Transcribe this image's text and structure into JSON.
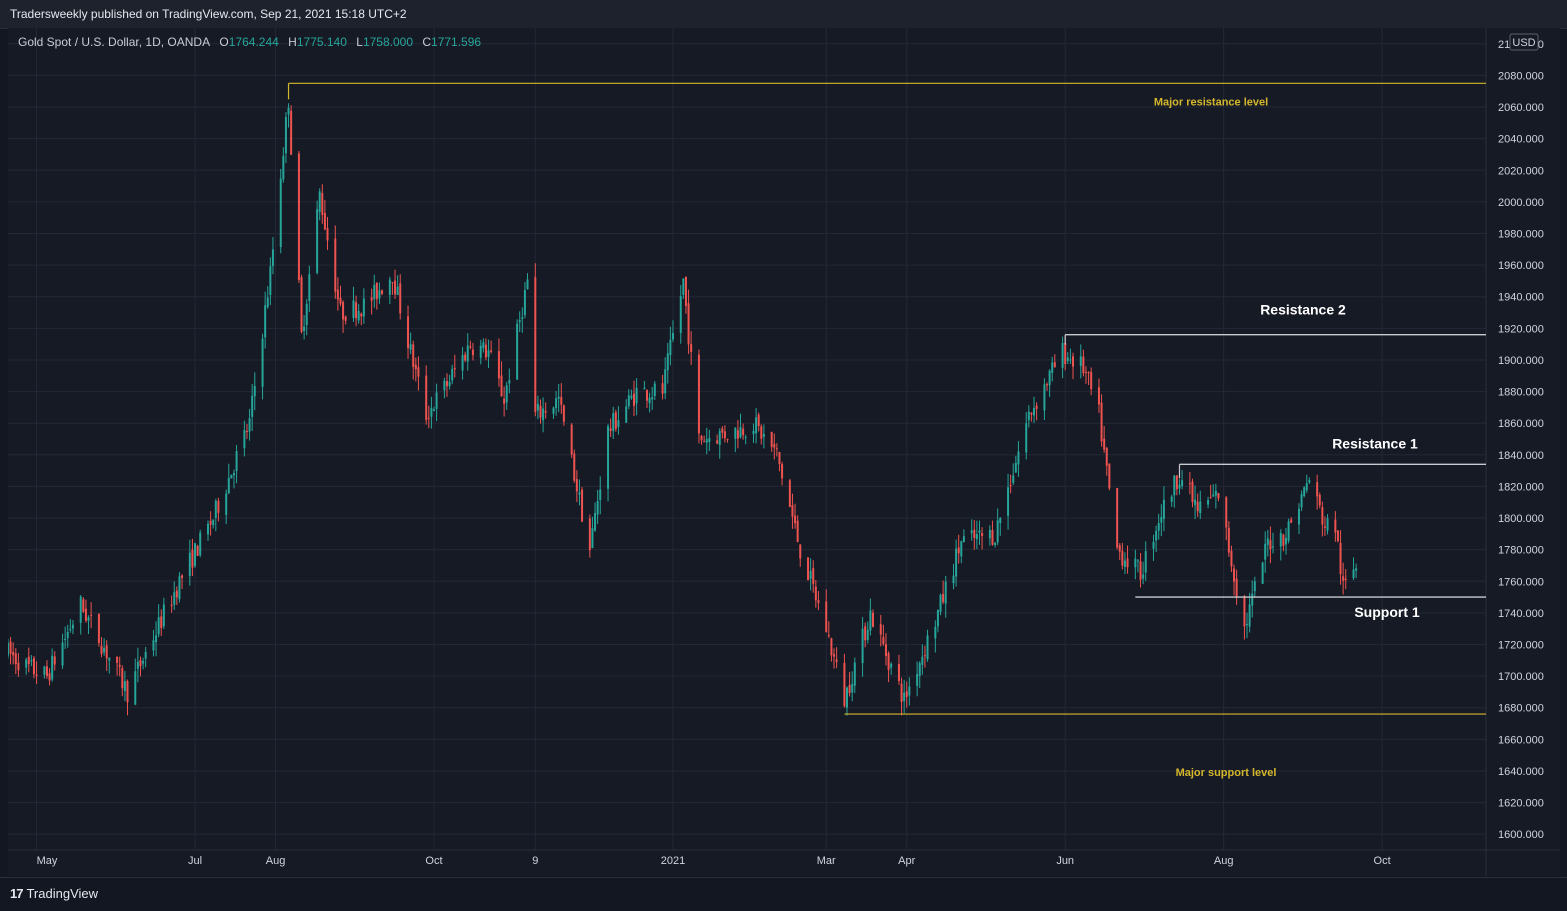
{
  "header": {
    "published": "Tradersweekly published on TradingView.com, Sep 21, 2021 15:18 UTC+2"
  },
  "legend": {
    "symbol": "Gold Spot / U.S. Dollar, 1D, OANDA",
    "open_label": "O",
    "open": "1764.244",
    "high_label": "H",
    "high": "1775.140",
    "low_label": "L",
    "low": "1758.000",
    "close_label": "C",
    "close": "1771.596"
  },
  "footer": {
    "brand": "TradingView",
    "brand_mark": "17"
  },
  "colors": {
    "background": "#161a25",
    "grid": "#242836",
    "up": "#26a69a",
    "down": "#ef5350",
    "major_level": "#d4b72c",
    "minor_level": "#c8cad0",
    "axis_text": "#d1d4dc"
  },
  "chart_data": {
    "type": "candlestick",
    "currency": "USD",
    "ylim": [
      1590,
      2110
    ],
    "y_ticks": [
      1600,
      1620,
      1640,
      1660,
      1680,
      1700,
      1720,
      1740,
      1760,
      1780,
      1800,
      1820,
      1840,
      1860,
      1880,
      1900,
      1920,
      1940,
      1960,
      1980,
      2000,
      2020,
      2040,
      2060,
      2080,
      2100
    ],
    "y_tick_labels": [
      "1600.000",
      "1620.000",
      "1640.000",
      "1660.000",
      "1680.000",
      "1700.000",
      "1720.000",
      "1740.000",
      "1760.000",
      "1780.000",
      "1800.000",
      "1820.000",
      "1840.000",
      "1860.000",
      "1880.000",
      "1900.000",
      "1920.000",
      "1940.000",
      "1960.000",
      "1980.000",
      "2000.000",
      "2020.000",
      "2040.000",
      "2060.000",
      "2080.000",
      "2100.000"
    ],
    "x_range": [
      "2020-04-20",
      "2021-11-10"
    ],
    "x_ticks": [
      {
        "label": "May",
        "date": "2020-05-01"
      },
      {
        "label": "Jul",
        "date": "2020-07-01"
      },
      {
        "label": "Aug",
        "date": "2020-08-01"
      },
      {
        "label": "Oct",
        "date": "2020-10-01"
      },
      {
        "label": "9",
        "date": "2020-11-09"
      },
      {
        "label": "2021",
        "date": "2021-01-01"
      },
      {
        "label": "Mar",
        "date": "2021-03-01"
      },
      {
        "label": "Apr",
        "date": "2021-04-01"
      },
      {
        "label": "Jun",
        "date": "2021-06-01"
      },
      {
        "label": "Aug",
        "date": "2021-08-01"
      },
      {
        "label": "Oct",
        "date": "2021-10-01"
      }
    ],
    "price_path": [
      [
        "2020-04-20",
        1715
      ],
      [
        "2020-04-28",
        1705
      ],
      [
        "2020-05-05",
        1700
      ],
      [
        "2020-05-18",
        1745
      ],
      [
        "2020-05-28",
        1715
      ],
      [
        "2020-06-05",
        1690
      ],
      [
        "2020-06-15",
        1725
      ],
      [
        "2020-06-25",
        1760
      ],
      [
        "2020-07-08",
        1800
      ],
      [
        "2020-07-22",
        1860
      ],
      [
        "2020-07-30",
        1955
      ],
      [
        "2020-08-06",
        2065
      ],
      [
        "2020-08-11",
        1915
      ],
      [
        "2020-08-18",
        2005
      ],
      [
        "2020-08-26",
        1930
      ],
      [
        "2020-09-05",
        1935
      ],
      [
        "2020-09-15",
        1955
      ],
      [
        "2020-09-22",
        1905
      ],
      [
        "2020-09-28",
        1865
      ],
      [
        "2020-10-06",
        1885
      ],
      [
        "2020-10-15",
        1910
      ],
      [
        "2020-10-22",
        1905
      ],
      [
        "2020-10-28",
        1875
      ],
      [
        "2020-11-06",
        1950
      ],
      [
        "2020-11-09",
        1865
      ],
      [
        "2020-11-18",
        1875
      ],
      [
        "2020-11-30",
        1780
      ],
      [
        "2020-12-07",
        1855
      ],
      [
        "2020-12-18",
        1880
      ],
      [
        "2020-12-28",
        1880
      ],
      [
        "2021-01-05",
        1950
      ],
      [
        "2021-01-11",
        1850
      ],
      [
        "2021-01-25",
        1855
      ],
      [
        "2021-02-01",
        1860
      ],
      [
        "2021-02-10",
        1840
      ],
      [
        "2021-02-19",
        1780
      ],
      [
        "2021-03-01",
        1730
      ],
      [
        "2021-03-08",
        1685
      ],
      [
        "2021-03-18",
        1740
      ],
      [
        "2021-03-31",
        1685
      ],
      [
        "2021-04-12",
        1735
      ],
      [
        "2021-04-22",
        1785
      ],
      [
        "2021-05-05",
        1790
      ],
      [
        "2021-05-18",
        1865
      ],
      [
        "2021-05-31",
        1905
      ],
      [
        "2021-06-08",
        1895
      ],
      [
        "2021-06-14",
        1865
      ],
      [
        "2021-06-21",
        1780
      ],
      [
        "2021-06-30",
        1765
      ],
      [
        "2021-07-07",
        1800
      ],
      [
        "2021-07-15",
        1828
      ],
      [
        "2021-07-22",
        1805
      ],
      [
        "2021-07-30",
        1815
      ],
      [
        "2021-08-09",
        1730
      ],
      [
        "2021-08-18",
        1785
      ],
      [
        "2021-08-25",
        1790
      ],
      [
        "2021-09-03",
        1825
      ],
      [
        "2021-09-09",
        1795
      ],
      [
        "2021-09-13",
        1795
      ],
      [
        "2021-09-16",
        1755
      ],
      [
        "2021-09-21",
        1771
      ]
    ],
    "levels": [
      {
        "label": "Major resistance level",
        "price": 2075,
        "from": "2020-08-06",
        "kind": "major"
      },
      {
        "label": "Resistance 2",
        "price": 1916,
        "from": "2021-06-01",
        "kind": "minor"
      },
      {
        "label": "Resistance 1",
        "price": 1834,
        "from": "2021-07-15",
        "kind": "minor"
      },
      {
        "label": "Support 1",
        "price": 1750,
        "from": "2021-06-28",
        "kind": "minor"
      },
      {
        "label": "Major support level",
        "price": 1676,
        "from": "2021-03-08",
        "kind": "major"
      }
    ]
  }
}
